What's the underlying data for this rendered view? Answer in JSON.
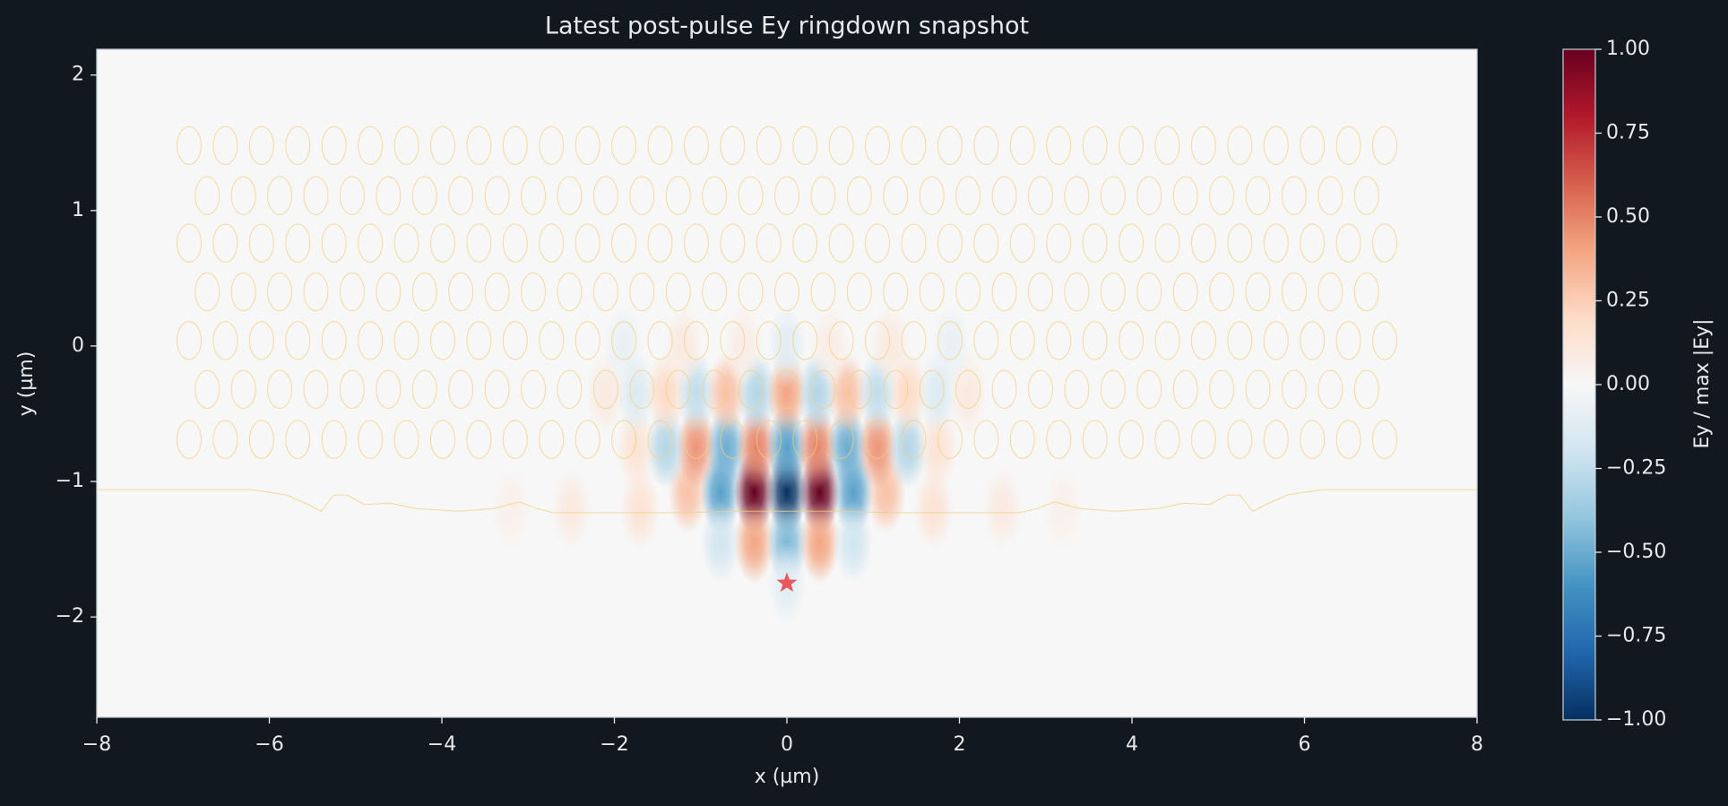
{
  "chart_data": {
    "type": "heatmap",
    "title": "Latest post-pulse Ey ringdown snapshot",
    "x_label": "x (µm)",
    "y_label": "y (µm)",
    "xlim": [
      -8,
      8
    ],
    "ylim": [
      -2.74,
      2.19
    ],
    "xticks": [
      {
        "value": -8,
        "label": "−8"
      },
      {
        "value": -6,
        "label": "−6"
      },
      {
        "value": -4,
        "label": "−4"
      },
      {
        "value": -2,
        "label": "−2"
      },
      0,
      2,
      4,
      6,
      8
    ],
    "yticks": [
      {
        "value": -2,
        "label": "−2"
      },
      {
        "value": -1,
        "label": "−1"
      },
      0,
      1,
      2
    ],
    "colormap": [
      "#053061",
      "#2166ac",
      "#4393c3",
      "#92c5de",
      "#d1e5f0",
      "#f7f7f7",
      "#fddbc7",
      "#f4a582",
      "#d6604d",
      "#b2182b",
      "#67001f"
    ],
    "clim": [
      -1,
      1
    ],
    "cticks": [
      {
        "value": -1,
        "label": "−1.00"
      },
      {
        "value": -0.75,
        "label": "−0.75"
      },
      {
        "value": -0.5,
        "label": "−0.50"
      },
      {
        "value": -0.25,
        "label": "−0.25"
      },
      {
        "value": 0,
        "label": "0.00"
      },
      {
        "value": 0.25,
        "label": "0.25"
      },
      {
        "value": 0.5,
        "label": "0.50"
      },
      {
        "value": 0.75,
        "label": "0.75"
      },
      {
        "value": 1,
        "label": "1.00"
      }
    ],
    "colorbar_label": "Ey / max |Ey|",
    "field": {
      "x": [
        -1.15,
        -0.77,
        -0.38,
        0,
        0.38,
        0.77,
        1.15,
        -0.77,
        -0.38,
        0,
        0.38,
        0.77,
        -1.75,
        -1.4,
        -1.05,
        -0.7,
        -0.35,
        0,
        0.35,
        0.7,
        1.05,
        1.4,
        1.75,
        -2.1,
        -1.75,
        -1.4,
        -1.05,
        -0.7,
        -0.35,
        0,
        0.35,
        0.7,
        1.05,
        1.4,
        1.75,
        2.1,
        -1.9,
        -1.2,
        -0.5,
        0,
        0.5,
        1.2,
        1.9,
        -3.2,
        -2.5,
        -1.7,
        1.7,
        2.5,
        3.2,
        0
      ],
      "y": [
        -1.08,
        -1.08,
        -1.08,
        -1.08,
        -1.08,
        -1.08,
        -1.08,
        -1.45,
        -1.45,
        -1.45,
        -1.45,
        -1.45,
        -0.75,
        -0.75,
        -0.75,
        -0.75,
        -0.75,
        -0.75,
        -0.75,
        -0.75,
        -0.75,
        -0.75,
        -0.75,
        -0.35,
        -0.35,
        -0.35,
        -0.35,
        -0.35,
        -0.35,
        -0.35,
        -0.35,
        -0.35,
        -0.35,
        -0.35,
        -0.35,
        -0.35,
        0,
        0,
        0,
        0,
        0,
        0,
        0,
        -1.2,
        -1.2,
        -1.2,
        -1.2,
        -1.2,
        -1.2,
        -1.75
      ],
      "values": [
        0.3,
        -0.55,
        1,
        -1,
        1,
        -0.55,
        0.3,
        -0.2,
        0.4,
        -0.45,
        0.4,
        -0.2,
        0.15,
        -0.3,
        0.45,
        -0.5,
        0.5,
        -0.55,
        0.5,
        -0.5,
        0.45,
        -0.3,
        0.15,
        0.1,
        -0.15,
        0.2,
        -0.25,
        0.3,
        -0.3,
        0.4,
        -0.3,
        0.3,
        -0.25,
        0.2,
        -0.15,
        0.1,
        -0.08,
        0.1,
        0.08,
        -0.12,
        0.08,
        0.1,
        -0.08,
        0.06,
        0.1,
        0.15,
        0.15,
        0.1,
        0.06,
        -0.12
      ]
    },
    "holes": {
      "color": "#f2cf7e",
      "radius": 0.14,
      "rows": [
        {
          "y": 1.48,
          "x": [
            -6.93,
            -6.51,
            -6.09,
            -5.67,
            -5.25,
            -4.83,
            -4.41,
            -3.99,
            -3.57,
            -3.15,
            -2.73,
            -2.31,
            -1.89,
            -1.47,
            -1.05,
            -0.63,
            -0.21,
            0.21,
            0.63,
            1.05,
            1.47,
            1.89,
            2.31,
            2.73,
            3.15,
            3.57,
            3.99,
            4.41,
            4.83,
            5.25,
            5.67,
            6.09,
            6.51,
            6.93
          ]
        },
        {
          "y": 1.11,
          "x": [
            -6.72,
            -6.3,
            -5.88,
            -5.46,
            -5.04,
            -4.62,
            -4.2,
            -3.78,
            -3.36,
            -2.94,
            -2.52,
            -2.1,
            -1.68,
            -1.26,
            -0.84,
            -0.42,
            0,
            0.42,
            0.84,
            1.26,
            1.68,
            2.1,
            2.52,
            2.94,
            3.36,
            3.78,
            4.2,
            4.62,
            5.04,
            5.46,
            5.88,
            6.3,
            6.72
          ]
        },
        {
          "y": 0.76,
          "x": [
            -6.93,
            -6.51,
            -6.09,
            -5.67,
            -5.25,
            -4.83,
            -4.41,
            -3.99,
            -3.57,
            -3.15,
            -2.73,
            -2.31,
            -1.89,
            -1.47,
            -1.05,
            -0.63,
            -0.21,
            0.21,
            0.63,
            1.05,
            1.47,
            1.89,
            2.31,
            2.73,
            3.15,
            3.57,
            3.99,
            4.41,
            4.83,
            5.25,
            5.67,
            6.09,
            6.51,
            6.93
          ]
        },
        {
          "y": 0.4,
          "x": [
            -6.72,
            -6.3,
            -5.88,
            -5.46,
            -5.04,
            -4.62,
            -4.2,
            -3.78,
            -3.36,
            -2.94,
            -2.52,
            -2.1,
            -1.68,
            -1.26,
            -0.84,
            -0.42,
            0,
            0.42,
            0.84,
            1.26,
            1.68,
            2.1,
            2.52,
            2.94,
            3.36,
            3.78,
            4.2,
            4.62,
            5.04,
            5.46,
            5.88,
            6.3,
            6.72
          ]
        },
        {
          "y": 0.04,
          "x": [
            -6.93,
            -6.51,
            -6.09,
            -5.67,
            -5.25,
            -4.83,
            -4.41,
            -3.99,
            -3.57,
            -3.15,
            -2.73,
            -2.31,
            -1.89,
            -1.47,
            -1.05,
            -0.63,
            -0.21,
            0.21,
            0.63,
            1.05,
            1.47,
            1.89,
            2.31,
            2.73,
            3.15,
            3.57,
            3.99,
            4.41,
            4.83,
            5.25,
            5.67,
            6.09,
            6.51,
            6.93
          ]
        },
        {
          "y": -0.32,
          "x": [
            -6.72,
            -6.3,
            -5.88,
            -5.46,
            -5.04,
            -4.62,
            -4.2,
            -3.78,
            -3.36,
            -2.94,
            -2.52,
            -2.1,
            -1.68,
            -1.26,
            -0.84,
            -0.42,
            0,
            0.42,
            0.84,
            1.26,
            1.68,
            2.1,
            2.52,
            2.94,
            3.36,
            3.78,
            4.2,
            4.62,
            5.04,
            5.46,
            5.88,
            6.3,
            6.72
          ]
        },
        {
          "y": -0.69,
          "x": [
            -6.93,
            -6.51,
            -6.09,
            -5.67,
            -5.25,
            -4.83,
            -4.41,
            -3.99,
            -3.57,
            -3.15,
            -2.73,
            -2.31,
            -1.89,
            -1.47,
            -1.05,
            -0.63,
            -0.21,
            0.21,
            0.63,
            1.05,
            1.47,
            1.89,
            2.31,
            2.73,
            3.15,
            3.57,
            3.99,
            4.41,
            4.83,
            5.25,
            5.67,
            6.09,
            6.51,
            6.93
          ]
        }
      ]
    },
    "boundary": {
      "color": "#f2cf7e",
      "x": [
        -8,
        -6.2,
        -5.8,
        -5.55,
        -5.4,
        -5.25,
        -5.1,
        -4.9,
        -4.6,
        -4.3,
        -3.8,
        -3.4,
        -3.1,
        -2.9,
        -2.7,
        -1.2,
        -0.6,
        0.6,
        1.2,
        2.7,
        2.9,
        3.1,
        3.4,
        3.8,
        4.3,
        4.6,
        4.9,
        5.1,
        5.25,
        5.4,
        5.55,
        5.8,
        6.2,
        8
      ],
      "y": [
        -1.06,
        -1.06,
        -1.1,
        -1.17,
        -1.22,
        -1.1,
        -1.1,
        -1.17,
        -1.16,
        -1.2,
        -1.22,
        -1.2,
        -1.15,
        -1.2,
        -1.23,
        -1.23,
        -1.22,
        -1.22,
        -1.23,
        -1.23,
        -1.2,
        -1.15,
        -1.2,
        -1.22,
        -1.2,
        -1.16,
        -1.17,
        -1.1,
        -1.1,
        -1.22,
        -1.17,
        -1.1,
        -1.06,
        -1.06
      ]
    },
    "source": {
      "x": 0,
      "y": -1.75,
      "color": "#e8575e"
    }
  }
}
